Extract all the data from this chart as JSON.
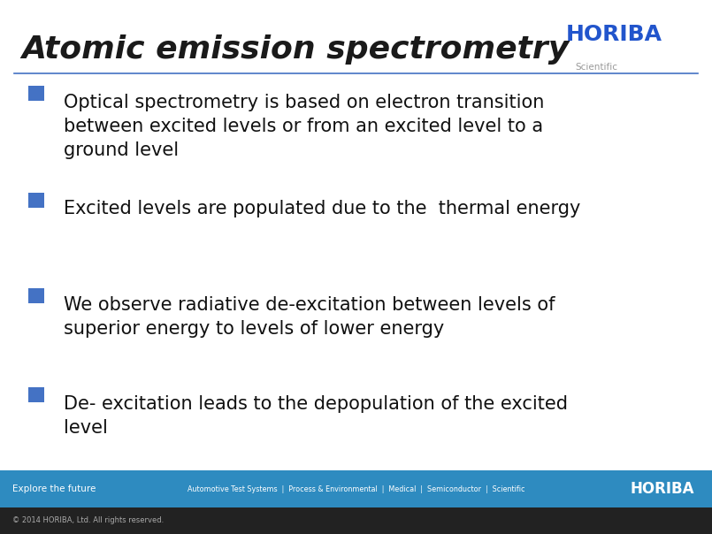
{
  "title": "Atomic emission spectrometry",
  "title_color": "#1a1a1a",
  "title_fontsize": 26,
  "title_style": "italic",
  "horiba_text": "HORIBA",
  "horiba_color": "#2255cc",
  "scientific_text": "Scientific",
  "scientific_color": "#999999",
  "separator_color": "#4472c4",
  "bullet_color": "#4472c4",
  "bullet_points": [
    "Optical spectrometry is based on electron transition\nbetween excited levels or from an excited level to a\nground level",
    "Excited levels are populated due to the  thermal energy",
    "We observe radiative de-excitation between levels of\nsuperior energy to levels of lower energy",
    "De- excitation leads to the depopulation of the excited\nlevel"
  ],
  "bullet_fontsize": 15,
  "bullet_color_text": "#111111",
  "footer_bg_color": "#2e8bc0",
  "footer_text_left": "Explore the future",
  "footer_text_center": "Automotive Test Systems  |  Process & Environmental  |  Medical  |  Semiconductor  |  Scientific",
  "footer_text_right": "HORIBA",
  "footer_text_color": "#ffffff",
  "copyright_text": "© 2014 HORIBA, Ltd. All rights reserved.",
  "bg_color": "#ffffff",
  "bottom_bar_color": "#222222",
  "fig_width": 8.05,
  "fig_height": 6.04,
  "dpi": 100
}
